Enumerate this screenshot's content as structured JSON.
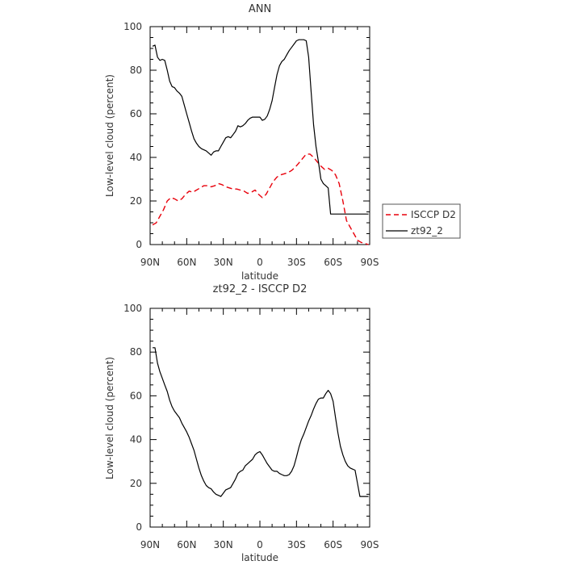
{
  "chart_data": [
    {
      "type": "line",
      "title": "ANN",
      "xlabel": "latitude",
      "ylabel": "Low-level cloud (percent)",
      "xlim": [
        90,
        -90
      ],
      "ylim": [
        0,
        100
      ],
      "x_ticks": [
        90,
        60,
        30,
        0,
        -30,
        -60,
        -90
      ],
      "x_tick_labels": [
        "90N",
        "60N",
        "30N",
        "0",
        "30S",
        "60S",
        "90S"
      ],
      "y_ticks": [
        0,
        20,
        40,
        60,
        80,
        100
      ],
      "y_tick_labels": [
        "0",
        "20",
        "40",
        "60",
        "80",
        "100"
      ],
      "legend": {
        "placement": "right"
      },
      "series": [
        {
          "name": "ISCCP D2",
          "color": "#e8000b",
          "dash": "dashed",
          "x": [
            88,
            85,
            82,
            79,
            76,
            73,
            70,
            67,
            64,
            61,
            58,
            55,
            52,
            49,
            46,
            43,
            40,
            37,
            34,
            31,
            28,
            25,
            22,
            19,
            16,
            13,
            10,
            7,
            4,
            1,
            -2,
            -5,
            -8,
            -11,
            -14,
            -17,
            -20,
            -23,
            -26,
            -29,
            -32,
            -35,
            -38,
            -41,
            -44,
            -47,
            -50,
            -53,
            -56,
            -59,
            -62,
            -65,
            -68,
            -71,
            -74,
            -77,
            -80,
            -83,
            -86,
            -89
          ],
          "y": [
            9,
            10,
            13,
            16,
            20,
            21.5,
            21,
            20,
            21,
            23,
            24.5,
            24,
            25,
            26,
            27,
            27,
            26.5,
            27,
            28,
            27.5,
            26.5,
            26,
            25.5,
            25.5,
            25,
            24.5,
            23.5,
            24,
            25,
            23,
            21.5,
            23,
            26,
            29,
            31,
            32,
            32.5,
            33,
            34,
            35.5,
            37.5,
            39.5,
            41.5,
            41.5,
            40,
            38,
            36,
            34.5,
            35,
            34,
            32,
            28,
            20,
            11,
            8,
            5,
            2,
            1,
            0.5,
            0
          ]
        },
        {
          "name": "zt92_2",
          "color": "#000000",
          "dash": "solid",
          "x": [
            88,
            86,
            84,
            82,
            80,
            78,
            76,
            74,
            72,
            70,
            68,
            66,
            64,
            62,
            60,
            58,
            56,
            54,
            52,
            50,
            48,
            46,
            44,
            42,
            40,
            38,
            36,
            34,
            32,
            30,
            28,
            26,
            24,
            22,
            20,
            18,
            16,
            14,
            12,
            10,
            8,
            6,
            4,
            2,
            0,
            -2,
            -4,
            -6,
            -8,
            -10,
            -12,
            -14,
            -16,
            -18,
            -20,
            -22,
            -24,
            -26,
            -28,
            -30,
            -32,
            -34,
            -36,
            -38,
            -40,
            -42,
            -44,
            -46,
            -48,
            -50,
            -52,
            -54,
            -56,
            -58,
            -60,
            -62,
            -64,
            -66,
            -68,
            -70,
            -72,
            -74,
            -76,
            -78,
            -80,
            -82,
            -84,
            -86,
            -88,
            -89
          ],
          "y": [
            91,
            91.5,
            86,
            84.5,
            85,
            84.5,
            80,
            75,
            72.5,
            72,
            70.5,
            69.5,
            68,
            64,
            60,
            56,
            52,
            48.5,
            46.5,
            45,
            44,
            43.5,
            43,
            42,
            41,
            42.5,
            43,
            43,
            45,
            47,
            49,
            49.5,
            49,
            50.5,
            52,
            54.5,
            54,
            54.5,
            55.5,
            57,
            58,
            58.5,
            58.5,
            58.5,
            58.5,
            57,
            57.5,
            59,
            62,
            66,
            72,
            78,
            82,
            84,
            85,
            87,
            89,
            90.5,
            92,
            93.5,
            94,
            94,
            94,
            93.5,
            86,
            70,
            55,
            45,
            38,
            30,
            28,
            27,
            26,
            14,
            14,
            14,
            14,
            14,
            14,
            14,
            14,
            14,
            14,
            14,
            14,
            14,
            14,
            14,
            14,
            14
          ]
        }
      ]
    },
    {
      "type": "line",
      "title": "zt92_2 - ISCCP D2",
      "xlabel": "latitude",
      "ylabel": "Low-level cloud (percent)",
      "xlim": [
        90,
        -90
      ],
      "ylim": [
        0,
        100
      ],
      "x_ticks": [
        90,
        60,
        30,
        0,
        -30,
        -60,
        -90
      ],
      "x_tick_labels": [
        "90N",
        "60N",
        "30N",
        "0",
        "30S",
        "60S",
        "90S"
      ],
      "y_ticks": [
        0,
        20,
        40,
        60,
        80,
        100
      ],
      "y_tick_labels": [
        "0",
        "20",
        "40",
        "60",
        "80",
        "100"
      ],
      "series": [
        {
          "color": "#000000",
          "dash": "solid",
          "x": [
            88,
            86,
            84,
            82,
            80,
            78,
            76,
            74,
            72,
            70,
            68,
            66,
            64,
            62,
            60,
            58,
            56,
            54,
            52,
            50,
            48,
            46,
            44,
            42,
            40,
            38,
            36,
            34,
            32,
            30,
            28,
            26,
            24,
            22,
            20,
            18,
            16,
            14,
            12,
            10,
            8,
            6,
            4,
            2,
            0,
            -2,
            -4,
            -6,
            -8,
            -10,
            -12,
            -14,
            -16,
            -18,
            -20,
            -22,
            -24,
            -26,
            -28,
            -30,
            -32,
            -34,
            -36,
            -38,
            -40,
            -42,
            -44,
            -46,
            -48,
            -50,
            -52,
            -54,
            -56,
            -58,
            -60,
            -62,
            -64,
            -66,
            -68,
            -70,
            -72,
            -74,
            -76,
            -78,
            -80,
            -82,
            -84,
            -86,
            -88,
            -89
          ],
          "y": [
            82,
            82,
            75,
            71,
            68,
            65,
            62,
            58,
            55,
            53,
            51.5,
            50,
            47.5,
            45.5,
            43.5,
            41,
            38,
            35,
            31,
            27,
            23.5,
            21,
            19,
            18,
            17.5,
            16,
            15,
            14.5,
            14,
            15.5,
            17,
            17.5,
            18,
            20,
            22,
            24.5,
            25.5,
            26,
            28,
            29,
            30,
            31,
            33,
            34,
            34.5,
            33,
            31,
            29,
            27.5,
            26,
            25.5,
            25.5,
            24.5,
            24,
            23.5,
            23.5,
            24,
            25.5,
            28,
            32,
            36.5,
            40,
            42.5,
            45.5,
            48.5,
            51,
            54,
            56.5,
            58.5,
            59,
            59,
            61,
            62.5,
            61,
            57.5,
            50,
            43,
            37,
            33,
            30,
            28,
            27,
            26.5,
            26,
            20,
            14,
            14,
            14,
            14,
            14
          ]
        }
      ]
    }
  ],
  "legend_items": [
    {
      "label": "ISCCP D2",
      "color": "#e8000b",
      "dash": "dashed"
    },
    {
      "label": "zt92_2",
      "color": "#000000",
      "dash": "solid"
    }
  ]
}
